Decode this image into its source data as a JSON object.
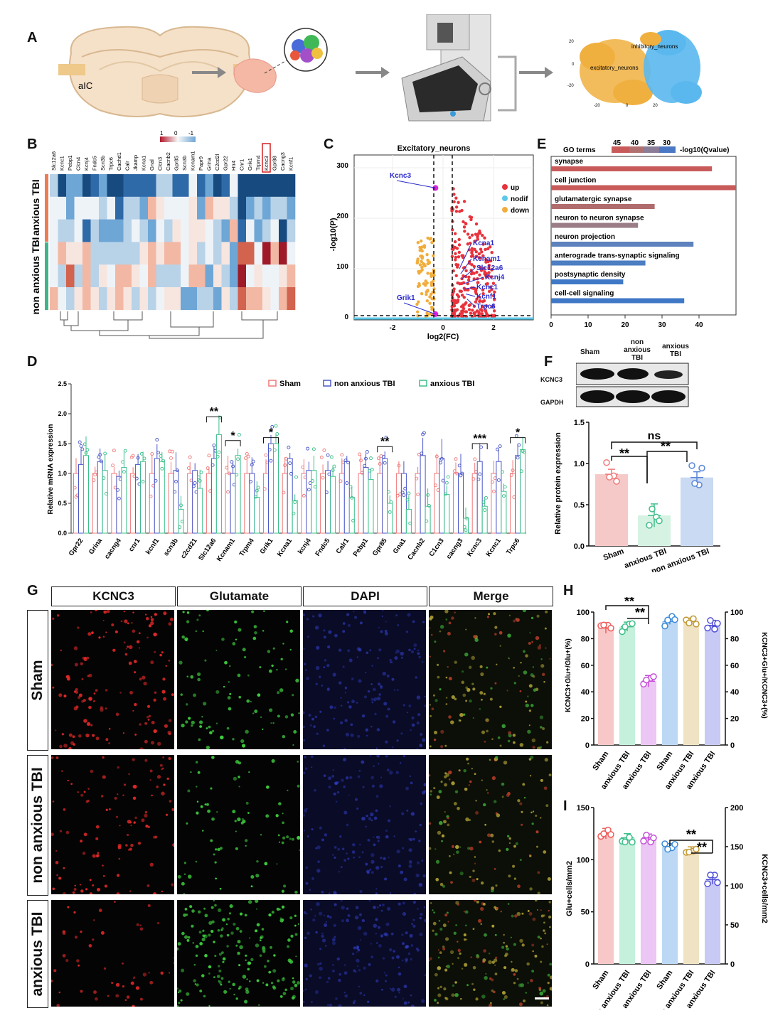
{
  "panels": {
    "A": "A",
    "B": "B",
    "C": "C",
    "D": "D",
    "E": "E",
    "F": "F",
    "G": "G",
    "H": "H",
    "I": "I"
  },
  "panelA": {
    "region_label": "aIC",
    "tsne_labels": [
      "inhibitory_neurons",
      "excitatory_neurons"
    ],
    "tsne_ticks_x": [
      "-20",
      "0",
      "20"
    ],
    "tsne_ticks_y": [
      "20",
      "0",
      "-20"
    ]
  },
  "panelB": {
    "legend_ticks": [
      "1",
      "0",
      "-1"
    ],
    "genes": [
      "Slc12a6",
      "Kcnc1",
      "Pebp1",
      "Clcn4",
      "Kcnj4",
      "Fndc5",
      "Scn3b",
      "Trpc6",
      "Cachd1",
      "Calr",
      "Jkamp",
      "Kcna1",
      "Gnal",
      "Clcn3",
      "Cacnb2",
      "Gpr85",
      "Scn3b",
      "Kcnam1",
      "Papr9",
      "Grina",
      "C2cd2l",
      "Gpr22",
      "Htr4",
      "Cnr1",
      "Grik1",
      "Trpm4",
      "Kcnc3",
      "Gpr88",
      "Cacng3",
      "Kcnf1"
    ],
    "highlight_gene": "Kcnc3",
    "groups": [
      "anxious TBI",
      "non anxious TBI"
    ],
    "group_colors": [
      "#ef7b54",
      "#3fb48a"
    ]
  },
  "panelC": {
    "title": "Excitatory_neurons",
    "xlabel": "log2(FC)",
    "ylabel": "-log10(P)",
    "legend": [
      {
        "label": "up",
        "color": "#e8323c"
      },
      {
        "label": "nodif",
        "color": "#5bc8e8"
      },
      {
        "label": "down",
        "color": "#f0ad3c"
      }
    ],
    "gene_labels": [
      "Kcnc3",
      "Kcna1",
      "Kcnam1",
      "Slc12a6",
      "Kcnj4",
      "Kcnc1",
      "Kcnf1",
      "Trpc6",
      "Grik1"
    ]
  },
  "panelE": {
    "legend_title": "GO terms",
    "legend_values": [
      "45",
      "40",
      "35",
      "30"
    ],
    "legend_unit": "-log10(Qvalue)"
  },
  "panelD": {
    "ylabel": "Relative mRNA expression",
    "legend": [
      "Sham",
      "non anxious TBI",
      "anxious TBI"
    ],
    "significance": [
      {
        "index": 8,
        "label": "**"
      },
      {
        "index": 9,
        "label": "*"
      },
      {
        "index": 11,
        "label": "*"
      },
      {
        "index": 18,
        "label": "**"
      },
      {
        "index": 23,
        "label": "***"
      },
      {
        "index": 25,
        "label": "*"
      }
    ]
  },
  "panelF": {
    "groups": [
      "Sham",
      "non anxious TBI",
      "anxious TBI"
    ],
    "blot_labels": [
      "KCNC3",
      "GAPDH"
    ],
    "significance": [
      "ns",
      "**",
      "**"
    ]
  },
  "panelG": {
    "headers": [
      "KCNC3",
      "Glutamate",
      "DAPI",
      "Merge"
    ],
    "rows": [
      "Sham",
      "non anxious TBI",
      "anxious TBI"
    ],
    "colors": [
      "#e02828",
      "#3fd03f",
      "#3a4ce0",
      "#c8b838"
    ]
  },
  "panelH": {
    "yright": "KCNC3+Glu+/KCNC3+(%)",
    "significance": [
      "**",
      "**"
    ]
  },
  "panelI": {
    "significance": [
      "**",
      "**"
    ]
  },
  "chart_data": [
    {
      "type": "bar",
      "panel": "E",
      "title": "",
      "xlabel": "",
      "ylabel": "",
      "categories": [
        "synapse",
        "cell junction",
        "glutamatergic synapse",
        "neuron to neuron synapse",
        "neuron projection",
        "anterograde trans-synaptic signaling",
        "postsynaptic density",
        "cell-cell signaling"
      ],
      "values": [
        43.5,
        50,
        28,
        23.5,
        38.5,
        25.5,
        19.5,
        36
      ],
      "colors": [
        "#c85a5a",
        "#c85a5a",
        "#b06c6c",
        "#9a7d86",
        "#5d82bd",
        "#4b7ec2",
        "#3f78c6",
        "#3f78c6"
      ],
      "xlim": [
        0,
        50
      ],
      "xticks": [
        0,
        10,
        20,
        30,
        40
      ]
    },
    {
      "type": "bar",
      "panel": "D",
      "title": "",
      "ylabel": "Relative mRNA expression",
      "ylim": [
        0,
        2.5
      ],
      "yticks": [
        "0.0",
        "0.5",
        "1.0",
        "1.5",
        "2.0",
        "2.5"
      ],
      "categories": [
        "Gpr22",
        "Grina",
        "cacng4",
        "cnr1",
        "kcnf1",
        "scn3b",
        "c2cd21",
        "Slc12a6",
        "Kcnam1",
        "Trpm4",
        "Grik1",
        "Kcna1",
        "kcnj4",
        "Fndc5",
        "Calr1",
        "Pebp1",
        "Gpr85",
        "Gna1",
        "Cacnb2",
        "C1cn3",
        "cacng3",
        "Kcnc3",
        "Kcnc1",
        "Trpc6"
      ],
      "series": [
        {
          "name": "Sham",
          "color": "#f07878",
          "values": [
            1.0,
            1.0,
            1.0,
            1.0,
            1.0,
            1.0,
            1.0,
            1.0,
            1.0,
            1.0,
            1.0,
            1.0,
            1.0,
            1.0,
            1.0,
            1.0,
            1.0,
            1.0,
            1.0,
            1.0,
            1.0,
            1.0,
            1.0,
            1.0
          ]
        },
        {
          "name": "non anxious TBI",
          "color": "#4a58c8",
          "values": [
            1.15,
            1.2,
            0.95,
            1.15,
            1.25,
            1.05,
            1.05,
            1.25,
            1.0,
            1.0,
            1.5,
            1.25,
            1.05,
            1.05,
            1.2,
            1.1,
            1.25,
            1.0,
            1.3,
            1.25,
            1.0,
            1.2,
            1.2,
            1.3
          ]
        },
        {
          "name": "anxious TBI",
          "color": "#3cbf8a",
          "values": [
            1.3,
            1.05,
            1.1,
            1.2,
            1.2,
            0.4,
            0.75,
            1.65,
            1.3,
            0.6,
            1.5,
            0.55,
            1.05,
            0.95,
            0.6,
            0.9,
            0.5,
            0.4,
            0.45,
            0.65,
            0.25,
            0.45,
            0.7,
            1.4
          ]
        }
      ]
    },
    {
      "type": "bar",
      "panel": "F",
      "ylabel": "Relative protein expression",
      "categories": [
        "Sham",
        "anxious TBI",
        "non anxious TBI"
      ],
      "values": [
        0.87,
        0.37,
        0.83
      ],
      "errors": [
        0.06,
        0.14,
        0.07
      ],
      "ylim": [
        0,
        1.5
      ],
      "yticks": [
        "0.0",
        "0.5",
        "1.0",
        "1.5"
      ],
      "colors": [
        "#f6c9c9",
        "#d6f2e2",
        "#c9daf2"
      ],
      "edge_colors": [
        "#ef7b7b",
        "#3fbf8a",
        "#5a86d6"
      ]
    },
    {
      "type": "bar",
      "panel": "H",
      "ylabel": "KCNC3+Glu+/Glu+(%)",
      "ylabel_right": "KCNC3+Glu+/KCNC3+(%)",
      "categories": [
        "Sham",
        "non anxious TBI",
        "anxious TBI",
        "Sham",
        "non anxious TBI",
        "anxious TBI"
      ],
      "values": [
        88,
        89,
        48,
        93,
        93,
        90
      ],
      "ylim": [
        0,
        100
      ],
      "yticks": [
        "0",
        "20",
        "40",
        "60",
        "80",
        "100"
      ],
      "colors": [
        "#f8c8c8",
        "#c4f0dc",
        "#ecc6f4",
        "#bcd8f4",
        "#efe3c4",
        "#c9c9f6"
      ],
      "edge_colors": [
        "#ef5a5a",
        "#3fbf8a",
        "#c44ed8",
        "#3a8ad8",
        "#c0962e",
        "#5050d8"
      ]
    },
    {
      "type": "bar",
      "panel": "I",
      "ylabel": "Glu+cells/mm2",
      "ylabel_right": "KCNC3+cells/mm2",
      "categories": [
        "Sham",
        "non anxious TBI",
        "anxious TBI",
        "Sham",
        "non anxious TBI",
        "anxious TBI"
      ],
      "values": [
        125,
        121,
        121,
        150,
        145,
        108
      ],
      "ylim_left": [
        0,
        150
      ],
      "ylim_right": [
        0,
        200
      ],
      "yticks_left": [
        "0",
        "50",
        "100",
        "150"
      ],
      "yticks_right": [
        "0",
        "50",
        "100",
        "150",
        "200"
      ],
      "colors": [
        "#f8c8c8",
        "#c4f0dc",
        "#ecc6f4",
        "#bcd8f4",
        "#efe3c4",
        "#c9c9f6"
      ],
      "edge_colors": [
        "#ef5a5a",
        "#3fbf8a",
        "#c44ed8",
        "#3a8ad8",
        "#c0962e",
        "#5050d8"
      ]
    }
  ]
}
